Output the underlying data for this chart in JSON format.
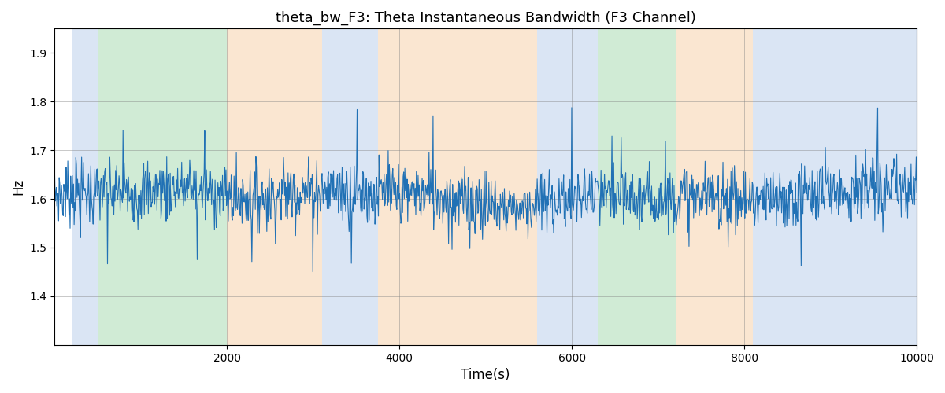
{
  "title": "theta_bw_F3: Theta Instantaneous Bandwidth (F3 Channel)",
  "xlabel": "Time(s)",
  "ylabel": "Hz",
  "xlim": [
    0,
    10000
  ],
  "ylim": [
    1.3,
    1.95
  ],
  "yticks": [
    1.4,
    1.5,
    1.6,
    1.7,
    1.8,
    1.9
  ],
  "xticks": [
    2000,
    4000,
    6000,
    8000,
    10000
  ],
  "line_color": "#2171b5",
  "line_width": 0.8,
  "bg_bands": [
    {
      "start": 200,
      "end": 500,
      "color": "#aec6e8",
      "alpha": 0.45
    },
    {
      "start": 500,
      "end": 2000,
      "color": "#98d4a3",
      "alpha": 0.45
    },
    {
      "start": 2000,
      "end": 3100,
      "color": "#f5c89a",
      "alpha": 0.45
    },
    {
      "start": 3100,
      "end": 3750,
      "color": "#aec6e8",
      "alpha": 0.45
    },
    {
      "start": 3750,
      "end": 5600,
      "color": "#f5c89a",
      "alpha": 0.45
    },
    {
      "start": 5600,
      "end": 6300,
      "color": "#aec6e8",
      "alpha": 0.45
    },
    {
      "start": 6300,
      "end": 7200,
      "color": "#98d4a3",
      "alpha": 0.45
    },
    {
      "start": 7200,
      "end": 8100,
      "color": "#f5c89a",
      "alpha": 0.45
    },
    {
      "start": 8100,
      "end": 10000,
      "color": "#aec6e8",
      "alpha": 0.45
    }
  ],
  "n_points": 1500,
  "signal_mean": 1.605,
  "signal_base_std": 0.032,
  "spike_prob": 0.06,
  "spike_std": 0.055,
  "seed": 7
}
